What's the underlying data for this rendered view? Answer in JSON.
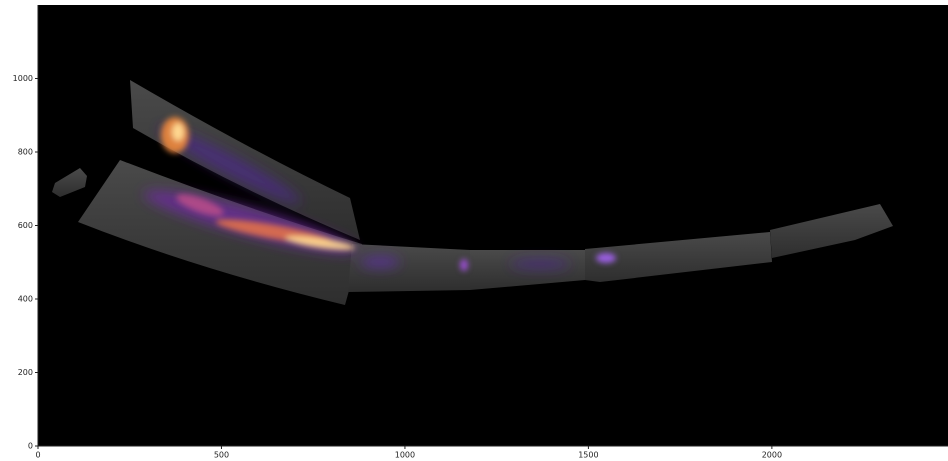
{
  "chart_data": {
    "type": "image",
    "xlim": [
      0,
      2480
    ],
    "ylim": [
      0,
      1200
    ],
    "xticks": [
      0,
      500,
      1000,
      1500,
      2000
    ],
    "yticks": [
      0,
      200,
      400,
      600,
      800,
      1000
    ]
  }
}
